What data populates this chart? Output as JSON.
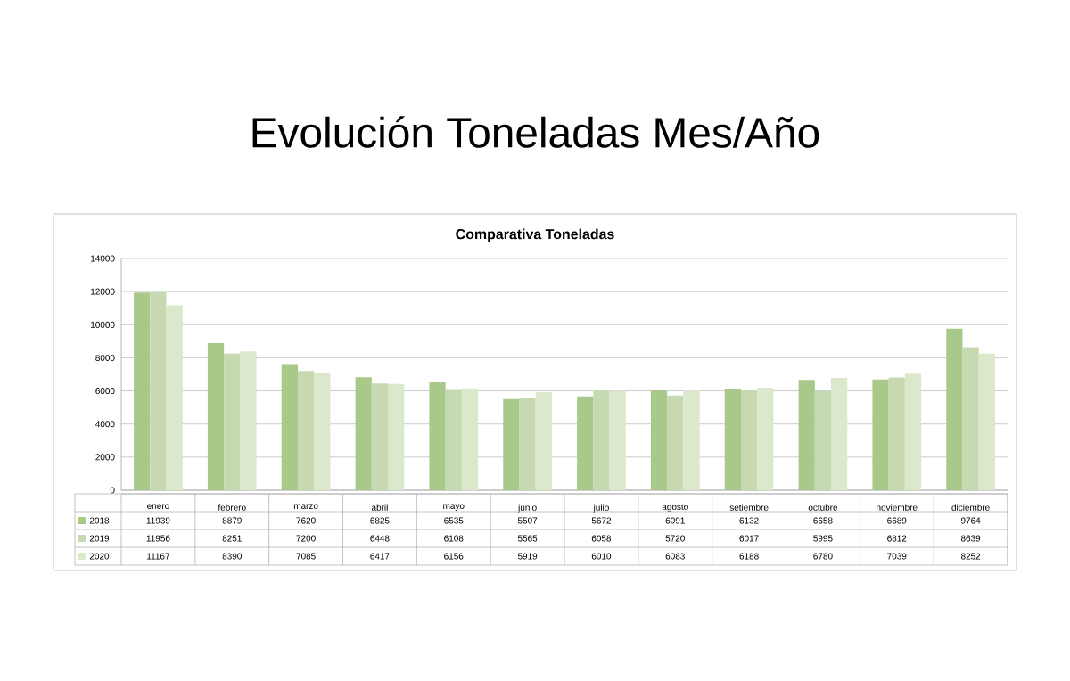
{
  "chart_data": {
    "type": "bar",
    "title": "Evolución Toneladas Mes/Año",
    "subtitle": "Comparativa Toneladas",
    "categories": [
      "enero",
      "febrero",
      "marzo",
      "abril",
      "mayo",
      "junio",
      "julio",
      "agosto",
      "setiembre",
      "octubre",
      "noviembre",
      "diciembre"
    ],
    "series": [
      {
        "name": "2018",
        "color": "#a9c98a",
        "values": [
          11939,
          8879,
          7620,
          6825,
          6535,
          5507,
          5672,
          6091,
          6132,
          6658,
          6689,
          9764
        ]
      },
      {
        "name": "2019",
        "color": "#c6d9b0",
        "values": [
          11956,
          8251,
          7200,
          6448,
          6108,
          5565,
          6058,
          5720,
          6017,
          5995,
          6812,
          8639
        ]
      },
      {
        "name": "2020",
        "color": "#dbe8cc",
        "values": [
          11167,
          8390,
          7085,
          6417,
          6156,
          5919,
          6010,
          6083,
          6188,
          6780,
          7039,
          8252
        ]
      }
    ],
    "ylim": [
      0,
      14000
    ],
    "yticks": [
      0,
      2000,
      4000,
      6000,
      8000,
      10000,
      12000,
      14000
    ],
    "grid": "y",
    "legend": "bottom",
    "data_labels": true
  }
}
